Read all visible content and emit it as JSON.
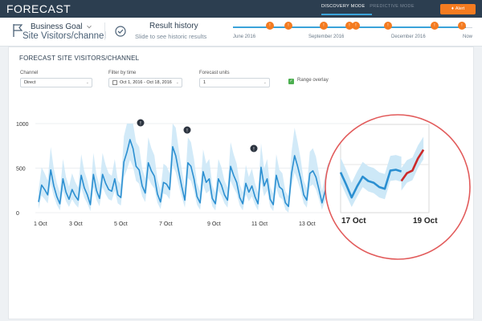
{
  "app": {
    "title": "FORECAST",
    "modes": [
      "DISCOVERY MODE",
      "PREDICTIVE MODE"
    ],
    "active_mode": "DISCOVERY MODE",
    "alert_label": "Alert",
    "accent_color": "#f47b20",
    "header_color": "#2c3e50"
  },
  "goal": {
    "title": "Business Goal",
    "subtitle": "Site Visitors/channel"
  },
  "history": {
    "title": "Result history",
    "subtitle": "Slide to see historic results",
    "timeline_labels": [
      "June 2016",
      "September 2016",
      "December 2016",
      "Now"
    ],
    "marker_count": 8
  },
  "panel": {
    "title": "FORECAST SITE VISITORS/CHANNEL",
    "channel_label": "Channel",
    "channel_value": "Direct",
    "time_label": "Filter by time",
    "time_value": "Oct 1, 2016 - Oct 18, 2016",
    "units_label": "Forecast units",
    "units_value": "1",
    "overlay_label": "Range overlay",
    "overlay_checked": true
  },
  "chart_data": {
    "type": "line",
    "title": "",
    "xlabel": "",
    "ylabel": "",
    "x_tick_labels": [
      "1 Oct",
      "3 Oct",
      "5 Oct",
      "7 Oct",
      "9 Oct",
      "11 Oct",
      "13 Oct"
    ],
    "zoom_tick_labels": [
      "17 Oct",
      "19 Oct"
    ],
    "y_ticks": [
      0,
      500,
      1000
    ],
    "ylim": [
      0,
      1000
    ],
    "annotations": [
      "!",
      "!",
      "!"
    ],
    "series": [
      {
        "values": [
          120,
          310,
          260,
          200,
          480,
          300,
          180,
          100,
          380,
          230,
          150,
          260,
          190,
          140,
          420,
          280,
          200,
          90,
          430,
          250,
          160,
          430,
          330,
          260,
          240,
          380,
          200,
          170,
          570,
          680,
          820,
          720,
          520,
          480,
          300,
          220,
          560,
          470,
          410,
          210,
          120,
          340,
          320,
          260,
          740,
          640,
          460,
          290,
          140,
          560,
          520,
          380,
          180,
          110,
          460,
          340,
          380,
          160,
          100,
          380,
          310,
          200,
          140,
          520,
          420,
          340,
          170,
          100,
          330,
          230,
          300,
          180,
          100,
          510,
          300,
          380,
          150,
          90,
          420,
          290,
          260,
          110,
          70,
          440,
          640,
          520,
          380,
          200,
          140,
          440,
          470,
          400,
          260,
          110,
          240,
          350,
          300,
          280,
          230,
          210,
          420,
          430,
          410
        ],
        "color": "#2b8fd1"
      },
      {
        "values": [
          300,
          390,
          420,
          560,
          660
        ],
        "color": "#cc2a2a"
      }
    ],
    "range_band_color": "#cde8f7",
    "grid": true
  }
}
